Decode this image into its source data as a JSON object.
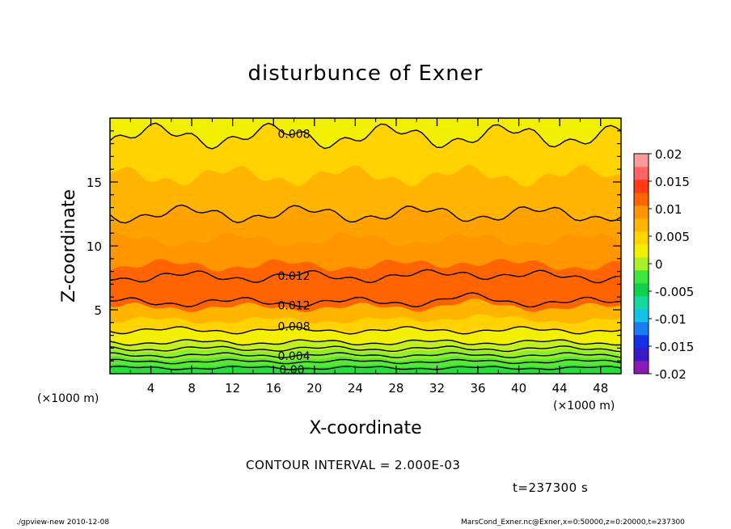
{
  "chart_data": {
    "type": "contour",
    "title": "disturbunce of Exner",
    "xlabel": "X-coordinate",
    "ylabel": "Z-coordinate",
    "x_unit": "(×1000 m)",
    "y_unit": "(×1000 m)",
    "xlim": [
      0,
      50
    ],
    "ylim": [
      0,
      20
    ],
    "x_ticks": [
      4,
      8,
      12,
      16,
      20,
      24,
      28,
      32,
      36,
      40,
      44,
      48
    ],
    "y_ticks": [
      5,
      10,
      15
    ],
    "contour_interval_text": "CONTOUR INTERVAL = 2.000E-03",
    "time_text": "t=237300 s",
    "colorbar": {
      "ticks": [
        "0.02",
        "0.015",
        "0.01",
        "0.005",
        "0",
        "-0.005",
        "-0.01",
        "-0.015",
        "-0.02"
      ],
      "range": [
        -0.02,
        0.02
      ],
      "level_step": 0.0025,
      "colors": [
        "#8a1ab4",
        "#3a1ac8",
        "#1232e6",
        "#1a7cf0",
        "#14c2e8",
        "#14d8a0",
        "#10d24a",
        "#3ce63a",
        "#aaf028",
        "#f2f000",
        "#ffd200",
        "#ffb400",
        "#ff9600",
        "#ff6400",
        "#ff3a14",
        "#ff6464",
        "#ff9a9a"
      ]
    },
    "bands": [
      {
        "z": [
          0.0,
          0.6
        ],
        "color": "#28dc3c"
      },
      {
        "z": [
          0.6,
          1.2
        ],
        "color": "#5ae636"
      },
      {
        "z": [
          1.2,
          1.8
        ],
        "color": "#8cee2c"
      },
      {
        "z": [
          1.8,
          2.5
        ],
        "color": "#c2f01e"
      },
      {
        "z": [
          2.5,
          3.4
        ],
        "color": "#f2f000"
      },
      {
        "z": [
          3.4,
          4.2
        ],
        "color": "#ffd200"
      },
      {
        "z": [
          4.2,
          5.2
        ],
        "color": "#ffb400"
      },
      {
        "z": [
          5.2,
          8.5
        ],
        "color": "#ff6400"
      },
      {
        "z": [
          8.5,
          10.5
        ],
        "color": "#ff9600"
      },
      {
        "z": [
          10.5,
          12.6
        ],
        "color": "#ffa200"
      },
      {
        "z": [
          12.6,
          15.5
        ],
        "color": "#ffb400"
      },
      {
        "z": [
          15.5,
          18.6
        ],
        "color": "#ffd200"
      },
      {
        "z": [
          18.6,
          20.0
        ],
        "color": "#f2f000"
      }
    ],
    "contours": [
      {
        "z": 0.45,
        "label": "0.00",
        "label_x": 17.8
      },
      {
        "z": 0.95,
        "label": "",
        "label_x": null
      },
      {
        "z": 1.45,
        "label": "0.004",
        "label_x": 18.0
      },
      {
        "z": 1.95,
        "label": "",
        "label_x": null
      },
      {
        "z": 2.45,
        "label": "",
        "label_x": null
      },
      {
        "z": 3.4,
        "label": "0.008",
        "label_x": 18.0
      },
      {
        "z": 5.6,
        "label": "0.012",
        "label_x": 18.0
      },
      {
        "z": 7.6,
        "label": "0.012",
        "label_x": 18.0
      },
      {
        "z": 12.5,
        "label": "",
        "label_x": null
      },
      {
        "z": 18.6,
        "label": "0.008",
        "label_x": 18.0
      }
    ]
  },
  "footer": {
    "left": "./gpview-new   2010-12-08",
    "right": "MarsCond_Exner.nc@Exner,x=0:50000,z=0:20000,t=237300"
  }
}
